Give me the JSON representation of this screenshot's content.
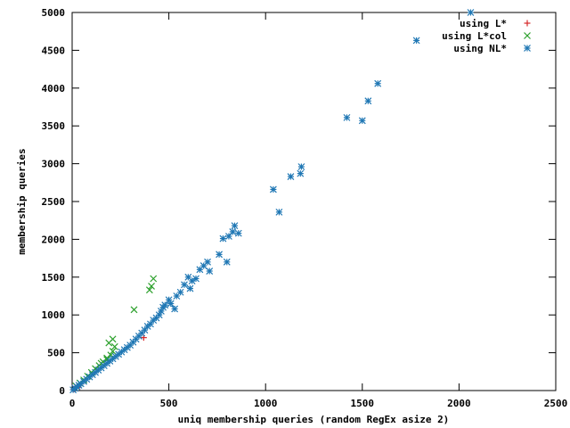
{
  "chart_data": {
    "type": "scatter",
    "title": "",
    "xlabel": "uniq membership queries (random RegEx asize 2)",
    "ylabel": "membership queries",
    "xlim": [
      0,
      2500
    ],
    "ylim": [
      0,
      5000
    ],
    "x_ticks": [
      0,
      500,
      1000,
      1500,
      2000,
      2500
    ],
    "y_ticks": [
      0,
      500,
      1000,
      1500,
      2000,
      2500,
      3000,
      3500,
      4000,
      4500,
      5000
    ],
    "grid": false,
    "legend_position": "top-right",
    "series": [
      {
        "name": "using L*",
        "marker": "plus",
        "color": "#d62728",
        "points": [
          [
            10,
            20
          ],
          [
            25,
            45
          ],
          [
            40,
            70
          ],
          [
            370,
            700
          ]
        ]
      },
      {
        "name": "using L*col",
        "marker": "cross",
        "color": "#2ca02c",
        "points": [
          [
            20,
            60
          ],
          [
            40,
            100
          ],
          [
            60,
            140
          ],
          [
            80,
            190
          ],
          [
            100,
            240
          ],
          [
            120,
            290
          ],
          [
            140,
            330
          ],
          [
            160,
            380
          ],
          [
            180,
            430
          ],
          [
            200,
            470
          ],
          [
            210,
            520
          ],
          [
            220,
            580
          ],
          [
            190,
            630
          ],
          [
            210,
            680
          ],
          [
            180,
            410
          ],
          [
            150,
            360
          ],
          [
            320,
            1070
          ],
          [
            400,
            1330
          ],
          [
            410,
            1380
          ],
          [
            420,
            1480
          ]
        ]
      },
      {
        "name": "using NL*",
        "marker": "star",
        "color": "#1f77b4",
        "points": [
          [
            5,
            10
          ],
          [
            15,
            30
          ],
          [
            25,
            50
          ],
          [
            35,
            70
          ],
          [
            45,
            90
          ],
          [
            60,
            120
          ],
          [
            75,
            150
          ],
          [
            90,
            180
          ],
          [
            105,
            210
          ],
          [
            120,
            240
          ],
          [
            135,
            270
          ],
          [
            150,
            300
          ],
          [
            165,
            330
          ],
          [
            180,
            360
          ],
          [
            195,
            390
          ],
          [
            210,
            420
          ],
          [
            225,
            450
          ],
          [
            240,
            480
          ],
          [
            255,
            510
          ],
          [
            270,
            540
          ],
          [
            285,
            570
          ],
          [
            300,
            600
          ],
          [
            315,
            640
          ],
          [
            330,
            680
          ],
          [
            345,
            720
          ],
          [
            360,
            760
          ],
          [
            375,
            800
          ],
          [
            390,
            850
          ],
          [
            405,
            880
          ],
          [
            420,
            930
          ],
          [
            435,
            960
          ],
          [
            450,
            1000
          ],
          [
            460,
            1050
          ],
          [
            470,
            1100
          ],
          [
            480,
            1130
          ],
          [
            500,
            1200
          ],
          [
            510,
            1150
          ],
          [
            530,
            1080
          ],
          [
            540,
            1250
          ],
          [
            560,
            1300
          ],
          [
            580,
            1400
          ],
          [
            600,
            1500
          ],
          [
            610,
            1350
          ],
          [
            620,
            1450
          ],
          [
            640,
            1480
          ],
          [
            660,
            1600
          ],
          [
            680,
            1650
          ],
          [
            700,
            1700
          ],
          [
            710,
            1580
          ],
          [
            760,
            1800
          ],
          [
            780,
            2010
          ],
          [
            800,
            1700
          ],
          [
            810,
            2040
          ],
          [
            830,
            2100
          ],
          [
            840,
            2180
          ],
          [
            860,
            2080
          ],
          [
            1040,
            2660
          ],
          [
            1070,
            2360
          ],
          [
            1130,
            2830
          ],
          [
            1180,
            2870
          ],
          [
            1185,
            2960
          ],
          [
            1420,
            3610
          ],
          [
            1500,
            3570
          ],
          [
            1530,
            3830
          ],
          [
            1580,
            4060
          ],
          [
            1780,
            4630
          ],
          [
            2060,
            5000
          ]
        ]
      }
    ]
  }
}
